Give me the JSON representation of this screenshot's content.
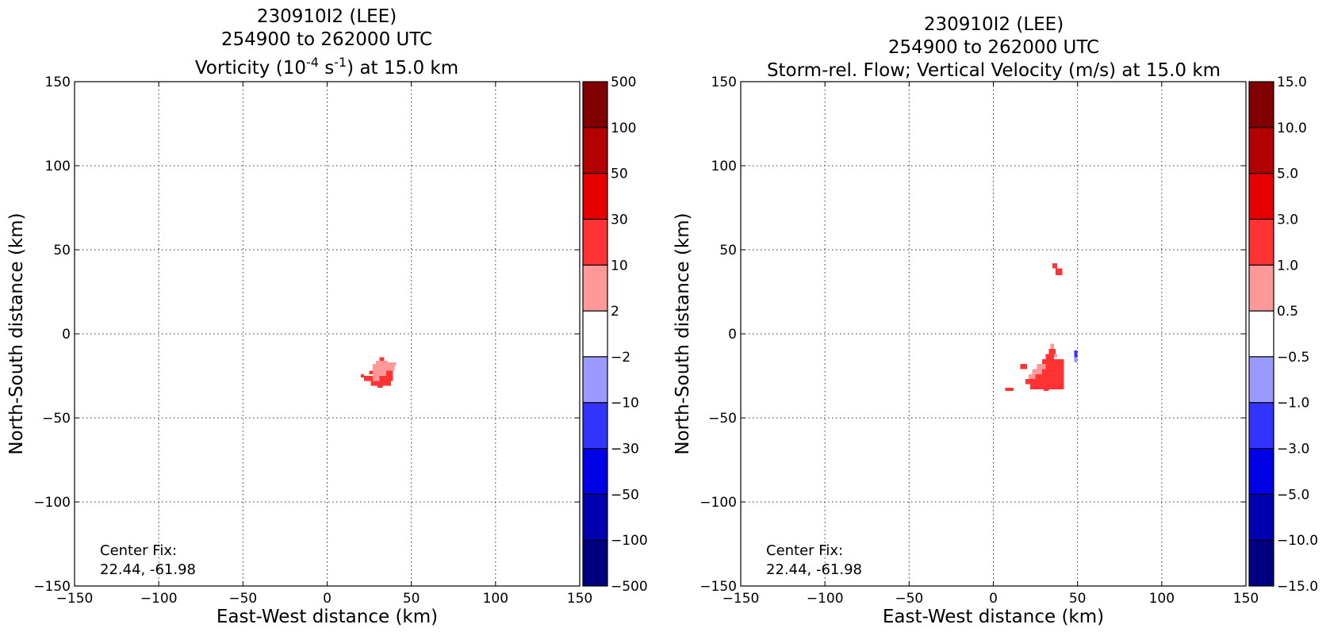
{
  "chart_data": [
    {
      "type": "heatmap",
      "title": [
        "230910I2 (LEE)",
        "254900 to 262000 UTC"
      ],
      "subtitle": {
        "pre": "Vorticity (10",
        "sup1": "-4",
        "mid": " s",
        "sup2": "-1",
        "post": ") at 15.0 km"
      },
      "xlabel": "East-West distance (km)",
      "ylabel": "North-South distance (km)",
      "xlim": [
        -150,
        150
      ],
      "ylim": [
        -150,
        150
      ],
      "xticks": [
        -150,
        -100,
        -50,
        0,
        50,
        100,
        150
      ],
      "yticks": [
        -150,
        -100,
        -50,
        0,
        50,
        100,
        150
      ],
      "xtick_labels": [
        "−150",
        "−100",
        "−50",
        "0",
        "50",
        "100",
        "150"
      ],
      "ytick_labels": [
        "−150",
        "−100",
        "−50",
        "0",
        "50",
        "100",
        "150"
      ],
      "grid": true,
      "annotation": [
        "Center Fix:",
        "22.44, -61.98"
      ],
      "colorbar": {
        "labels": [
          "−500",
          "−100",
          "−50",
          "−30",
          "−10",
          "−2",
          "2",
          "10",
          "30",
          "50",
          "100",
          "500"
        ],
        "colors": [
          "#000080",
          "#0000b0",
          "#0000e6",
          "#3333ff",
          "#9999ff",
          "#ffffff",
          "#ff9999",
          "#ff3333",
          "#e60000",
          "#b30000",
          "#800000"
        ]
      },
      "cells": [
        {
          "x": 31,
          "y": -14,
          "w": 3,
          "h": 2,
          "color": "#ff3333"
        },
        {
          "x": 29,
          "y": -16,
          "w": 7,
          "h": 2,
          "color": "#ff9999"
        },
        {
          "x": 36,
          "y": -17,
          "w": 5,
          "h": 2,
          "color": "#ff9999"
        },
        {
          "x": 27,
          "y": -18,
          "w": 11,
          "h": 4,
          "color": "#ff9999"
        },
        {
          "x": 38,
          "y": -19,
          "w": 2,
          "h": 3,
          "color": "#ff9999"
        },
        {
          "x": 27,
          "y": -22,
          "w": 8,
          "h": 3,
          "color": "#ff9999"
        },
        {
          "x": 35,
          "y": -22,
          "w": 4,
          "h": 3,
          "color": "#ff3333"
        },
        {
          "x": 25,
          "y": -22,
          "w": 2,
          "h": 2,
          "color": "#ff3333"
        },
        {
          "x": 22,
          "y": -25,
          "w": 5,
          "h": 3,
          "color": "#ff3333"
        },
        {
          "x": 20,
          "y": -24,
          "w": 2,
          "h": 2,
          "color": "#ff3333"
        },
        {
          "x": 27,
          "y": -25,
          "w": 4,
          "h": 3,
          "color": "#ff9999"
        },
        {
          "x": 31,
          "y": -25,
          "w": 8,
          "h": 3,
          "color": "#ff3333"
        },
        {
          "x": 26,
          "y": -28,
          "w": 12,
          "h": 3,
          "color": "#ff3333"
        },
        {
          "x": 30,
          "y": -30,
          "w": 3,
          "h": 2,
          "color": "#ff3333"
        }
      ]
    },
    {
      "type": "heatmap",
      "title": [
        "230910I2 (LEE)",
        "254900 to 262000 UTC"
      ],
      "subtitle": {
        "pre": "Storm-rel. Flow; Vertical Velocity (m/s) at 15.0 km",
        "sup1": "",
        "mid": "",
        "sup2": "",
        "post": ""
      },
      "xlabel": "East-West distance (km)",
      "ylabel": "North-South distance (km)",
      "xlim": [
        -150,
        150
      ],
      "ylim": [
        -150,
        150
      ],
      "xticks": [
        -150,
        -100,
        -50,
        0,
        50,
        100,
        150
      ],
      "yticks": [
        -150,
        -100,
        -50,
        0,
        50,
        100,
        150
      ],
      "xtick_labels": [
        "−150",
        "−100",
        "−50",
        "0",
        "50",
        "100",
        "150"
      ],
      "ytick_labels": [
        "−150",
        "−100",
        "−50",
        "0",
        "50",
        "100",
        "150"
      ],
      "grid": true,
      "annotation": [
        "Center Fix:",
        "22.44, -61.98"
      ],
      "colorbar": {
        "labels": [
          "−15.0",
          "−10.0",
          "−5.0",
          "−3.0",
          "−1.0",
          "−0.5",
          "0.5",
          "1.0",
          "3.0",
          "5.0",
          "10.0",
          "15.0"
        ],
        "colors": [
          "#000080",
          "#0000b0",
          "#0000e6",
          "#3333ff",
          "#9999ff",
          "#ffffff",
          "#ff9999",
          "#ff3333",
          "#e60000",
          "#b30000",
          "#800000"
        ]
      },
      "cells": [
        {
          "x": 35,
          "y": 42,
          "w": 3,
          "h": 3,
          "color": "#ff3333"
        },
        {
          "x": 37,
          "y": 39,
          "w": 4,
          "h": 4,
          "color": "#ff3333"
        },
        {
          "x": 34,
          "y": -6,
          "w": 2,
          "h": 3,
          "color": "#ff9999"
        },
        {
          "x": 33,
          "y": -9,
          "w": 4,
          "h": 3,
          "color": "#ff3333"
        },
        {
          "x": 31,
          "y": -12,
          "w": 5,
          "h": 3,
          "color": "#ff3333"
        },
        {
          "x": 36,
          "y": -12,
          "w": 2,
          "h": 2,
          "color": "#ff9999"
        },
        {
          "x": 29,
          "y": -15,
          "w": 13,
          "h": 3,
          "color": "#ff3333"
        },
        {
          "x": 26,
          "y": -18,
          "w": 5,
          "h": 3,
          "color": "#ff9999"
        },
        {
          "x": 31,
          "y": -18,
          "w": 11,
          "h": 3,
          "color": "#ff3333"
        },
        {
          "x": 23,
          "y": -21,
          "w": 6,
          "h": 3,
          "color": "#ff9999"
        },
        {
          "x": 29,
          "y": -21,
          "w": 13,
          "h": 3,
          "color": "#ff3333"
        },
        {
          "x": 16,
          "y": -18,
          "w": 4,
          "h": 3,
          "color": "#ff3333"
        },
        {
          "x": 21,
          "y": -24,
          "w": 4,
          "h": 3,
          "color": "#ff9999"
        },
        {
          "x": 25,
          "y": -24,
          "w": 17,
          "h": 3,
          "color": "#ff3333"
        },
        {
          "x": 19,
          "y": -27,
          "w": 23,
          "h": 3,
          "color": "#ff3333"
        },
        {
          "x": 22,
          "y": -30,
          "w": 20,
          "h": 3,
          "color": "#ff3333"
        },
        {
          "x": 30,
          "y": -32,
          "w": 3,
          "h": 2,
          "color": "#ff3333"
        },
        {
          "x": 7,
          "y": -32,
          "w": 5,
          "h": 2,
          "color": "#ff3333"
        },
        {
          "x": 48,
          "y": -10,
          "w": 2,
          "h": 4,
          "color": "#3333ff"
        },
        {
          "x": 48,
          "y": -14,
          "w": 2,
          "h": 3,
          "color": "#9999ff"
        }
      ]
    }
  ]
}
